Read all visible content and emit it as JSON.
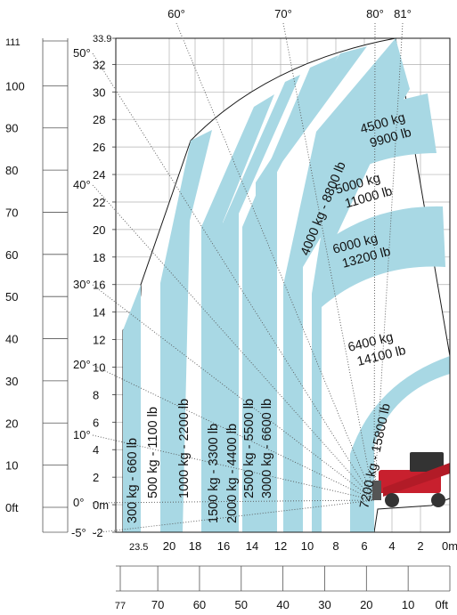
{
  "chart_data": {
    "type": "diagram",
    "x_axis_m": {
      "ticks": [
        "23.5",
        "20",
        "18",
        "16",
        "14",
        "12",
        "10",
        "8",
        "6",
        "4",
        "2",
        "0m"
      ],
      "values": [
        23.5,
        20,
        18,
        16,
        14,
        12,
        10,
        8,
        6,
        4,
        2,
        0
      ],
      "range": [
        -0.5,
        24
      ]
    },
    "y_axis_m": {
      "ticks": [
        "-2",
        "0m",
        "2",
        "4",
        "6",
        "8",
        "10",
        "12",
        "14",
        "16",
        "18",
        "20",
        "22",
        "24",
        "26",
        "28",
        "30",
        "32",
        "33.9"
      ],
      "values": [
        -2,
        0,
        2,
        4,
        6,
        8,
        10,
        12,
        14,
        16,
        18,
        20,
        22,
        24,
        26,
        28,
        30,
        32,
        33.9
      ],
      "range": [
        -2,
        33.9
      ]
    },
    "y_axis_ft": {
      "ticks": [
        "0ft",
        "10",
        "20",
        "30",
        "40",
        "50",
        "60",
        "70",
        "80",
        "90",
        "100",
        "111"
      ],
      "values": [
        0,
        10,
        20,
        30,
        40,
        50,
        60,
        70,
        80,
        90,
        100,
        111
      ]
    },
    "x_axis_ft": {
      "ticks": [
        "77",
        "70",
        "60",
        "50",
        "40",
        "30",
        "20",
        "10",
        "0ft"
      ],
      "values": [
        77,
        70,
        60,
        50,
        40,
        30,
        20,
        10,
        0
      ]
    },
    "angles_left": {
      "labels": [
        "50°",
        "40°",
        "30°",
        "20°",
        "10°",
        "0°",
        "-5°"
      ],
      "values": [
        50,
        40,
        30,
        20,
        10,
        0,
        -5
      ]
    },
    "angles_top": {
      "labels": [
        "60°",
        "70°",
        "80°",
        "81°"
      ],
      "values": [
        60,
        70,
        80,
        81
      ]
    },
    "load_zones": [
      {
        "label": "300 kg - 660 lb",
        "kg": 300
      },
      {
        "label": "500 kg - 1100 lb",
        "kg": 500
      },
      {
        "label": "1000 kg - 2200 lb",
        "kg": 1000
      },
      {
        "label": "1500 kg - 3300 lb",
        "kg": 1500
      },
      {
        "label": "2000 kg - 4400 lb",
        "kg": 2000
      },
      {
        "label": "2500 kg - 5500 lb",
        "kg": 2500
      },
      {
        "label": "3000 kg - 6600 lb",
        "kg": 3000
      },
      {
        "label": "4000 kg - 8800 lb",
        "kg": 4000
      },
      {
        "label": "7200 kg - 15800 lb",
        "kg": 7200
      }
    ],
    "arc_zones": [
      {
        "line1": "4500 kg",
        "line2": "9900 lb"
      },
      {
        "line1": "5000 kg",
        "line2": "11000 lb"
      },
      {
        "line1": "6000 kg",
        "line2": "13200 lb"
      },
      {
        "line1": "6400 kg",
        "line2": "14100 lb"
      }
    ],
    "colors": {
      "band": "#a8d8e4",
      "grid": "#9a9a9a",
      "outline": "#1a1a1a",
      "machine": "#c8202e"
    }
  }
}
